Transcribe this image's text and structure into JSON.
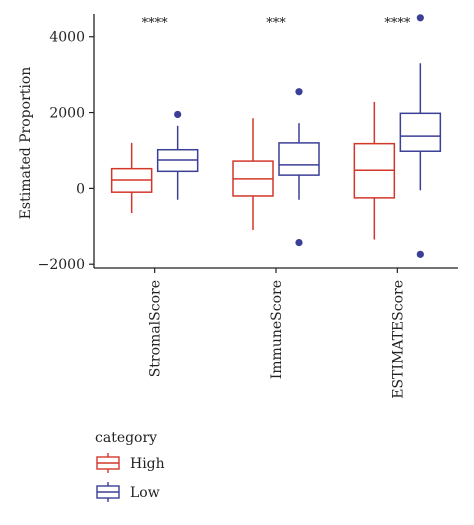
{
  "chart_data": {
    "type": "boxplot",
    "ylabel": "Estimated Proportion",
    "xlabel": "",
    "ylim": [
      -2100,
      4600
    ],
    "yticks": [
      -2000,
      0,
      2000,
      4000
    ],
    "ytick_labels": [
      "−2000",
      "0",
      "2000",
      "4000"
    ],
    "categories": [
      "StromalScore",
      "ImmuneScore",
      "ESTIMATEScore"
    ],
    "significance": [
      "****",
      "***",
      "****"
    ],
    "legend": {
      "title": "category",
      "placement": "bottom-left",
      "entries": [
        "High",
        "Low"
      ]
    },
    "series": [
      {
        "name": "High",
        "color": "#d2372a",
        "boxes": [
          {
            "category": "StromalScore",
            "whisker_low": -650,
            "q1": -100,
            "median": 220,
            "q3": 520,
            "whisker_high": 1200,
            "outliers": []
          },
          {
            "category": "ImmuneScore",
            "whisker_low": -1100,
            "q1": -200,
            "median": 250,
            "q3": 720,
            "whisker_high": 1850,
            "outliers": []
          },
          {
            "category": "ESTIMATEScore",
            "whisker_low": -1350,
            "q1": -250,
            "median": 480,
            "q3": 1180,
            "whisker_high": 2280,
            "outliers": []
          }
        ]
      },
      {
        "name": "Low",
        "color": "#3b3f96",
        "boxes": [
          {
            "category": "StromalScore",
            "whisker_low": -300,
            "q1": 450,
            "median": 750,
            "q3": 1020,
            "whisker_high": 1650,
            "outliers": [
              1950
            ]
          },
          {
            "category": "ImmuneScore",
            "whisker_low": -300,
            "q1": 350,
            "median": 620,
            "q3": 1200,
            "whisker_high": 1720,
            "outliers": [
              2550,
              -1430
            ]
          },
          {
            "category": "ESTIMATEScore",
            "whisker_low": -50,
            "q1": 980,
            "median": 1380,
            "q3": 1980,
            "whisker_high": 3300,
            "outliers": [
              4500,
              -1740
            ]
          }
        ]
      }
    ]
  }
}
